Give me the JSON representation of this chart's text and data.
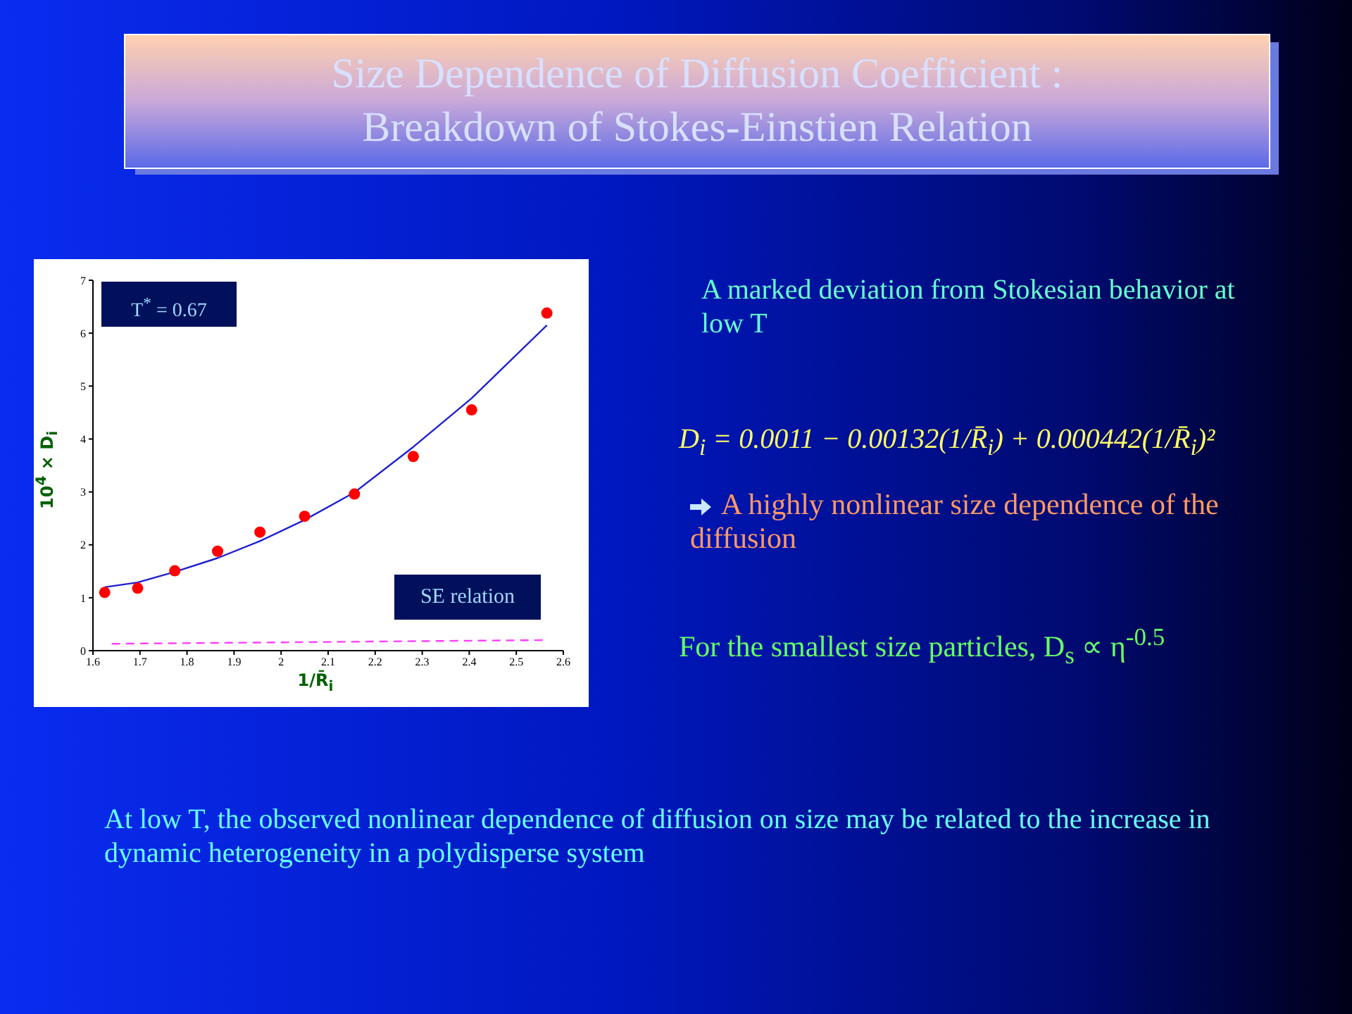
{
  "chart_data": {
    "type": "scatter",
    "title": "Size Dependence of Diffusion Coefficient : Breakdown of Stokes-Einstien Relation",
    "xlabel": "1/R̄$_{i}$",
    "ylabel": "10$^{4}$ × D$_{i}$",
    "xlim": [
      1.6,
      2.6
    ],
    "xticks": [
      1.6,
      1.7,
      1.8,
      1.9,
      2,
      2.1,
      2.2,
      2.3,
      2.4,
      2.5,
      2.6
    ],
    "ylim": [
      0,
      7
    ],
    "yticks": [
      0,
      1,
      2,
      3,
      4,
      5,
      6,
      7
    ],
    "grid": false,
    "legend": false,
    "series": [
      {
        "color": "#ff0000",
        "marker": "circle",
        "x": [
          1.625,
          1.695,
          1.774,
          1.865,
          1.955,
          2.05,
          2.156,
          2.281,
          2.405,
          2.565
        ],
        "values": [
          1.1,
          1.18,
          1.51,
          1.88,
          2.24,
          2.54,
          2.96,
          3.67,
          4.55,
          6.38
        ]
      },
      {
        "type": "line",
        "color": "#2020d0",
        "line_style": "solid",
        "x": [
          1.625,
          1.695,
          1.774,
          1.865,
          1.955,
          2.05,
          2.156,
          2.281,
          2.405,
          2.565
        ],
        "values": [
          1.2,
          1.29,
          1.49,
          1.75,
          2.07,
          2.47,
          2.99,
          3.85,
          4.77,
          6.15
        ]
      },
      {
        "type": "line",
        "name": "SE relation",
        "color": "#ff40ff",
        "line_style": "dashed",
        "x": [
          1.64,
          2.565
        ],
        "values": [
          0.13,
          0.2
        ]
      }
    ],
    "annotations": [
      "T$^{*}$ = 0.67",
      "A marked deviation from Stokesian behavior at low T",
      "D$_{i}$ = 0.0011 − 0.00132(1/R̄$_{i}$) + 0.000442(1/R̄$_{i}$)²",
      "A highly nonlinear size dependence of the diffusion",
      "For the smallest size particles, D$_{s}$ ∝ η$^{-0.5}$",
      "At low T, the observed nonlinear dependence of diffusion on size may be related to the increase in dynamic heterogeneity in a polydisperse system"
    ]
  }
}
